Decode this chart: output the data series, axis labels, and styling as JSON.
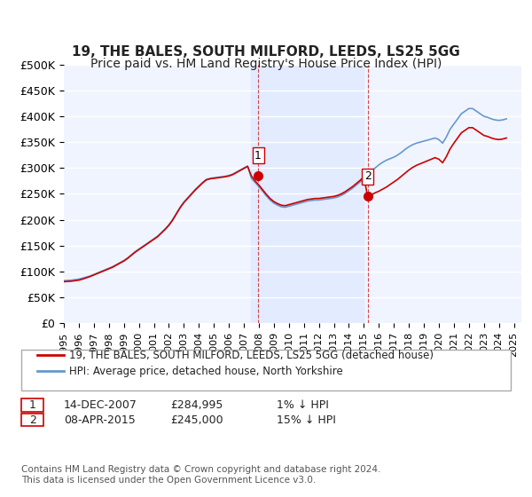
{
  "title": "19, THE BALES, SOUTH MILFORD, LEEDS, LS25 5GG",
  "subtitle": "Price paid vs. HM Land Registry's House Price Index (HPI)",
  "ylabel_ticks": [
    "£0",
    "£50K",
    "£100K",
    "£150K",
    "£200K",
    "£250K",
    "£300K",
    "£350K",
    "£400K",
    "£450K",
    "£500K"
  ],
  "ytick_values": [
    0,
    50000,
    100000,
    150000,
    200000,
    250000,
    300000,
    350000,
    400000,
    450000,
    500000
  ],
  "ylim": [
    0,
    500000
  ],
  "xlim_start": 1995.0,
  "xlim_end": 2025.5,
  "background_color": "#ffffff",
  "plot_background": "#f0f4ff",
  "grid_color": "#ffffff",
  "red_line_color": "#cc0000",
  "blue_line_color": "#6699cc",
  "marker1_date": 2007.95,
  "marker1_value": 284995,
  "marker2_date": 2015.27,
  "marker2_value": 245000,
  "shade_x1_start": 2007.5,
  "shade_x1_end": 2015.0,
  "legend_label1": "19, THE BALES, SOUTH MILFORD, LEEDS, LS25 5GG (detached house)",
  "legend_label2": "HPI: Average price, detached house, North Yorkshire",
  "table_row1": [
    "1",
    "14-DEC-2007",
    "£284,995",
    "1% ↓ HPI"
  ],
  "table_row2": [
    "2",
    "08-APR-2015",
    "£245,000",
    "15% ↓ HPI"
  ],
  "footer": "Contains HM Land Registry data © Crown copyright and database right 2024.\nThis data is licensed under the Open Government Licence v3.0.",
  "title_fontsize": 11,
  "subtitle_fontsize": 10,
  "tick_fontsize": 9,
  "hpi_data_x": [
    1995.0,
    1995.25,
    1995.5,
    1995.75,
    1996.0,
    1996.25,
    1996.5,
    1996.75,
    1997.0,
    1997.25,
    1997.5,
    1997.75,
    1998.0,
    1998.25,
    1998.5,
    1998.75,
    1999.0,
    1999.25,
    1999.5,
    1999.75,
    2000.0,
    2000.25,
    2000.5,
    2000.75,
    2001.0,
    2001.25,
    2001.5,
    2001.75,
    2002.0,
    2002.25,
    2002.5,
    2002.75,
    2003.0,
    2003.25,
    2003.5,
    2003.75,
    2004.0,
    2004.25,
    2004.5,
    2004.75,
    2005.0,
    2005.25,
    2005.5,
    2005.75,
    2006.0,
    2006.25,
    2006.5,
    2006.75,
    2007.0,
    2007.25,
    2007.5,
    2007.75,
    2008.0,
    2008.25,
    2008.5,
    2008.75,
    2009.0,
    2009.25,
    2009.5,
    2009.75,
    2010.0,
    2010.25,
    2010.5,
    2010.75,
    2011.0,
    2011.25,
    2011.5,
    2011.75,
    2012.0,
    2012.25,
    2012.5,
    2012.75,
    2013.0,
    2013.25,
    2013.5,
    2013.75,
    2014.0,
    2014.25,
    2014.5,
    2014.75,
    2015.0,
    2015.25,
    2015.5,
    2015.75,
    2016.0,
    2016.25,
    2016.5,
    2016.75,
    2017.0,
    2017.25,
    2017.5,
    2017.75,
    2018.0,
    2018.25,
    2018.5,
    2018.75,
    2019.0,
    2019.25,
    2019.5,
    2019.75,
    2020.0,
    2020.25,
    2020.5,
    2020.75,
    2021.0,
    2021.25,
    2021.5,
    2021.75,
    2022.0,
    2022.25,
    2022.5,
    2022.75,
    2023.0,
    2023.25,
    2023.5,
    2023.75,
    2024.0,
    2024.25,
    2024.5
  ],
  "hpi_data_y": [
    82000,
    82500,
    83000,
    84000,
    85000,
    87000,
    89000,
    91000,
    94000,
    97000,
    100000,
    103000,
    106000,
    109000,
    113000,
    117000,
    121000,
    126000,
    132000,
    138000,
    143000,
    148000,
    153000,
    158000,
    163000,
    168000,
    175000,
    182000,
    190000,
    200000,
    212000,
    224000,
    234000,
    242000,
    250000,
    258000,
    265000,
    272000,
    278000,
    280000,
    281000,
    282000,
    283000,
    284000,
    285500,
    288000,
    292000,
    296000,
    300000,
    304000,
    280000,
    272000,
    264000,
    255000,
    246000,
    238000,
    232000,
    228000,
    225000,
    224000,
    226000,
    228000,
    230000,
    232000,
    234000,
    236000,
    237000,
    238000,
    238000,
    239000,
    240000,
    241000,
    242000,
    244000,
    247000,
    251000,
    256000,
    261000,
    267000,
    273000,
    280000,
    287000,
    294000,
    300000,
    306000,
    311000,
    315000,
    318000,
    321000,
    325000,
    330000,
    336000,
    341000,
    345000,
    348000,
    350000,
    352000,
    354000,
    356000,
    358000,
    355000,
    348000,
    360000,
    375000,
    385000,
    395000,
    405000,
    410000,
    415000,
    415000,
    410000,
    405000,
    400000,
    398000,
    395000,
    393000,
    392000,
    393000,
    395000
  ],
  "red_data_x": [
    1995.0,
    1995.25,
    1995.5,
    1995.75,
    1996.0,
    1996.25,
    1996.5,
    1996.75,
    1997.0,
    1997.25,
    1997.5,
    1997.75,
    1998.0,
    1998.25,
    1998.5,
    1998.75,
    1999.0,
    1999.25,
    1999.5,
    1999.75,
    2000.0,
    2000.25,
    2000.5,
    2000.75,
    2001.0,
    2001.25,
    2001.5,
    2001.75,
    2002.0,
    2002.25,
    2002.5,
    2002.75,
    2003.0,
    2003.25,
    2003.5,
    2003.75,
    2004.0,
    2004.25,
    2004.5,
    2004.75,
    2005.0,
    2005.25,
    2005.5,
    2005.75,
    2006.0,
    2006.25,
    2006.5,
    2006.75,
    2007.0,
    2007.25,
    2007.5,
    2007.75,
    2008.0,
    2008.25,
    2008.5,
    2008.75,
    2009.0,
    2009.25,
    2009.5,
    2009.75,
    2010.0,
    2010.25,
    2010.5,
    2010.75,
    2011.0,
    2011.25,
    2011.5,
    2011.75,
    2012.0,
    2012.25,
    2012.5,
    2012.75,
    2013.0,
    2013.25,
    2013.5,
    2013.75,
    2014.0,
    2014.25,
    2014.5,
    2014.75,
    2015.0,
    2015.25,
    2015.5,
    2015.75,
    2016.0,
    2016.25,
    2016.5,
    2016.75,
    2017.0,
    2017.25,
    2017.5,
    2017.75,
    2018.0,
    2018.25,
    2018.5,
    2018.75,
    2019.0,
    2019.25,
    2019.5,
    2019.75,
    2020.0,
    2020.25,
    2020.5,
    2020.75,
    2021.0,
    2021.25,
    2021.5,
    2021.75,
    2022.0,
    2022.25,
    2022.5,
    2022.75,
    2023.0,
    2023.25,
    2023.5,
    2023.75,
    2024.0,
    2024.25,
    2024.5
  ],
  "red_data_y": [
    80000,
    80500,
    81000,
    82000,
    83000,
    85000,
    87500,
    90000,
    93000,
    96000,
    99000,
    102000,
    105000,
    108000,
    112000,
    116000,
    120000,
    125000,
    131000,
    137000,
    142000,
    147000,
    152000,
    157000,
    162000,
    167000,
    174000,
    181000,
    189000,
    199000,
    211000,
    223000,
    233000,
    241000,
    249000,
    257000,
    264000,
    271000,
    277000,
    279000,
    280000,
    281000,
    282000,
    283000,
    284500,
    287000,
    291000,
    295000,
    299000,
    303000,
    284995,
    275000,
    267000,
    258000,
    249000,
    241000,
    235000,
    231000,
    228000,
    227000,
    229000,
    231000,
    233000,
    235000,
    237000,
    239000,
    240000,
    241000,
    241000,
    242000,
    243000,
    244000,
    245000,
    247000,
    250000,
    254000,
    259000,
    264000,
    270000,
    276000,
    283000,
    245000,
    248000,
    252000,
    255000,
    259000,
    263000,
    268000,
    273000,
    278000,
    284000,
    290000,
    296000,
    301000,
    305000,
    308000,
    311000,
    314000,
    317000,
    320000,
    317000,
    310000,
    322000,
    337000,
    348000,
    358000,
    368000,
    373000,
    378000,
    378000,
    373000,
    368000,
    363000,
    361000,
    358000,
    356000,
    355000,
    356000,
    358000
  ],
  "xtick_years": [
    1995,
    1996,
    1997,
    1998,
    1999,
    2000,
    2001,
    2002,
    2003,
    2004,
    2005,
    2006,
    2007,
    2008,
    2009,
    2010,
    2011,
    2012,
    2013,
    2014,
    2015,
    2016,
    2017,
    2018,
    2019,
    2020,
    2021,
    2022,
    2023,
    2024,
    2025
  ]
}
